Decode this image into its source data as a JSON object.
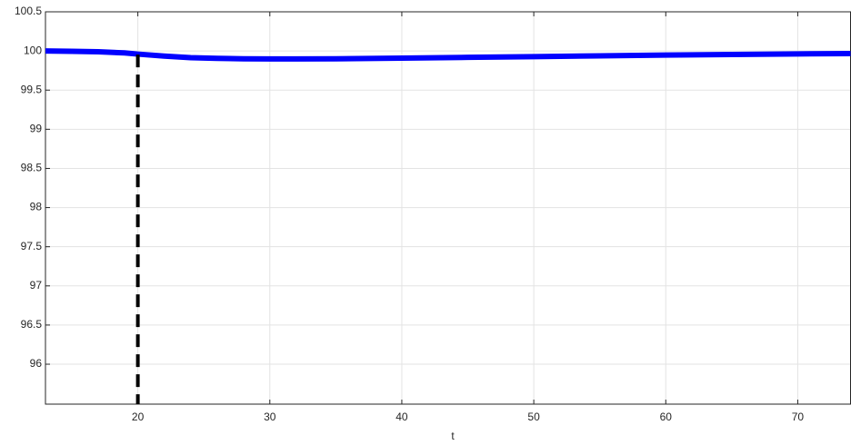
{
  "chart_data": {
    "type": "line",
    "xlabel": "t",
    "x": [
      13,
      15,
      17,
      19,
      20,
      22,
      24,
      26,
      28,
      30,
      32,
      35,
      40,
      45,
      50,
      55,
      60,
      65,
      70,
      74
    ],
    "series": [
      {
        "color": "#0000ff",
        "values": [
          100,
          99.995,
          99.99,
          99.975,
          99.96,
          99.935,
          99.915,
          99.905,
          99.9,
          99.898,
          99.898,
          99.9,
          99.908,
          99.918,
          99.928,
          99.938,
          99.948,
          99.955,
          99.962,
          99.967
        ]
      }
    ],
    "vline": {
      "x": 20,
      "color": "#000000"
    },
    "xlim": [
      13,
      74
    ],
    "xticks": [
      20,
      30,
      40,
      50,
      60,
      70
    ],
    "ylim": [
      95.49,
      100.5
    ],
    "yticks": [
      96,
      96.5,
      97,
      97.5,
      98,
      98.5,
      99,
      99.5,
      100,
      100.5
    ],
    "grid": true
  }
}
